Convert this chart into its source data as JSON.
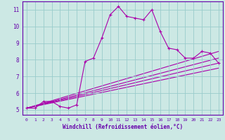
{
  "xlabel": "Windchill (Refroidissement éolien,°C)",
  "bg_color": "#cce8e4",
  "line_color": "#aa00aa",
  "grid_color": "#99cccc",
  "axis_color": "#6600aa",
  "xlim": [
    -0.5,
    23.5
  ],
  "ylim": [
    4.7,
    11.5
  ],
  "xticks": [
    0,
    1,
    2,
    3,
    4,
    5,
    6,
    7,
    8,
    9,
    10,
    11,
    12,
    13,
    14,
    15,
    16,
    17,
    18,
    19,
    20,
    21,
    22,
    23
  ],
  "yticks": [
    5,
    6,
    7,
    8,
    9,
    10,
    11
  ],
  "main_x": [
    0,
    1,
    2,
    3,
    4,
    5,
    6,
    7,
    8,
    9,
    10,
    11,
    12,
    13,
    14,
    15,
    16,
    17,
    18,
    19,
    20,
    21,
    22,
    23
  ],
  "main_y": [
    5.1,
    5.1,
    5.5,
    5.5,
    5.2,
    5.1,
    5.3,
    7.9,
    8.1,
    9.3,
    10.7,
    11.2,
    10.6,
    10.5,
    10.4,
    11.0,
    9.7,
    8.7,
    8.6,
    8.1,
    8.1,
    8.5,
    8.4,
    7.8
  ],
  "line2_x": [
    0,
    23
  ],
  "line2_y": [
    5.1,
    7.8
  ],
  "line3_x": [
    0,
    23
  ],
  "line3_y": [
    5.1,
    8.5
  ],
  "line4_x": [
    0,
    23
  ],
  "line4_y": [
    5.1,
    8.1
  ],
  "line5_x": [
    0,
    23
  ],
  "line5_y": [
    5.1,
    7.5
  ]
}
